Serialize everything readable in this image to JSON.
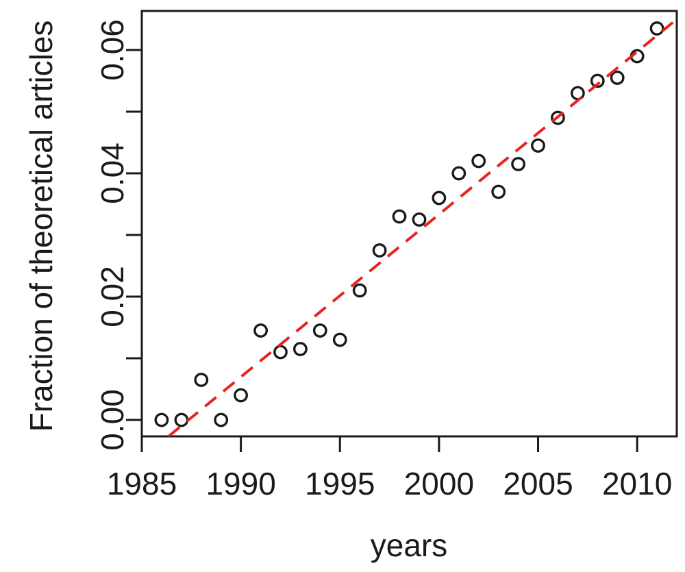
{
  "figure": {
    "background": "#ffffff"
  },
  "chart_data": {
    "type": "scatter",
    "title": "",
    "xlabel": "years",
    "ylabel": "Fraction of theoretical articles",
    "xlim": [
      1985,
      2012
    ],
    "ylim": [
      -0.00267,
      0.06633
    ],
    "grid": false,
    "legend": null,
    "x_ticks": [
      {
        "v": 1985,
        "label": "1985"
      },
      {
        "v": 1990,
        "label": "1990"
      },
      {
        "v": 1995,
        "label": "1995"
      },
      {
        "v": 2000,
        "label": "2000"
      },
      {
        "v": 2005,
        "label": "2005"
      },
      {
        "v": 2010,
        "label": "2010"
      }
    ],
    "y_ticks": [
      {
        "v": 0.0,
        "label": "0.00"
      },
      {
        "v": 0.01,
        "label": ""
      },
      {
        "v": 0.02,
        "label": "0.02"
      },
      {
        "v": 0.03,
        "label": ""
      },
      {
        "v": 0.04,
        "label": "0.04"
      },
      {
        "v": 0.05,
        "label": ""
      },
      {
        "v": 0.06,
        "label": "0.06"
      }
    ],
    "series": [
      {
        "name": "fraction-of-theoretical-articles",
        "marker": "open-circle",
        "x": [
          1986,
          1987,
          1988,
          1989,
          1990,
          1991,
          1992,
          1993,
          1994,
          1995,
          1996,
          1997,
          1998,
          1999,
          2000,
          2001,
          2002,
          2003,
          2004,
          2005,
          2006,
          2007,
          2008,
          2009,
          2010,
          2011
        ],
        "y": [
          0.0,
          0.0,
          0.0065,
          0.0,
          0.004,
          0.0145,
          0.011,
          0.0115,
          0.0145,
          0.013,
          0.021,
          0.0275,
          0.033,
          0.0325,
          0.036,
          0.04,
          0.042,
          0.037,
          0.0415,
          0.0445,
          0.049,
          0.053,
          0.055,
          0.0555,
          0.059,
          0.0635
        ]
      }
    ],
    "trend_line": {
      "style": "dashed",
      "x": [
        1986.35,
        2012
      ],
      "y": [
        -0.00267,
        0.065
      ]
    },
    "colors": {
      "axis": "#1a1a1a",
      "marker": "#1a1a1a",
      "trend": "#e52420",
      "background": "#ffffff"
    }
  }
}
